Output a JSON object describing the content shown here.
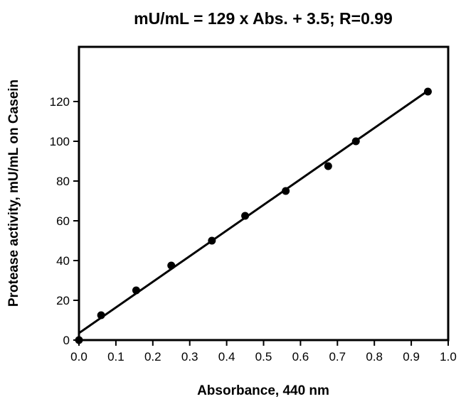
{
  "chart_data": {
    "type": "scatter",
    "title": "mU/mL = 129 x Abs. + 3.5;  R=0.99",
    "xlabel": "Absorbance, 440 nm",
    "ylabel": "Protease activity, mU/mL on Casein",
    "xlim": [
      0,
      1.0
    ],
    "ylim": [
      0,
      130
    ],
    "x_ticks": [
      "0.0",
      "0.1",
      "0.2",
      "0.3",
      "0.4",
      "0.5",
      "0.6",
      "0.7",
      "0.8",
      "0.9",
      "1.0"
    ],
    "y_ticks": [
      "0",
      "20",
      "40",
      "60",
      "80",
      "100",
      "120"
    ],
    "grid": false,
    "series": [
      {
        "points": [
          {
            "x": 0.0,
            "y": 0.0
          },
          {
            "x": 0.06,
            "y": 12.5
          },
          {
            "x": 0.155,
            "y": 25.0
          },
          {
            "x": 0.25,
            "y": 37.5
          },
          {
            "x": 0.36,
            "y": 50.0
          },
          {
            "x": 0.45,
            "y": 62.5
          },
          {
            "x": 0.56,
            "y": 75.0
          },
          {
            "x": 0.675,
            "y": 87.5
          },
          {
            "x": 0.75,
            "y": 100.0
          },
          {
            "x": 0.945,
            "y": 125.0
          }
        ]
      }
    ],
    "fit_line": {
      "slope": 129,
      "intercept": 3.5,
      "x_range": [
        0.0,
        0.945
      ]
    }
  }
}
